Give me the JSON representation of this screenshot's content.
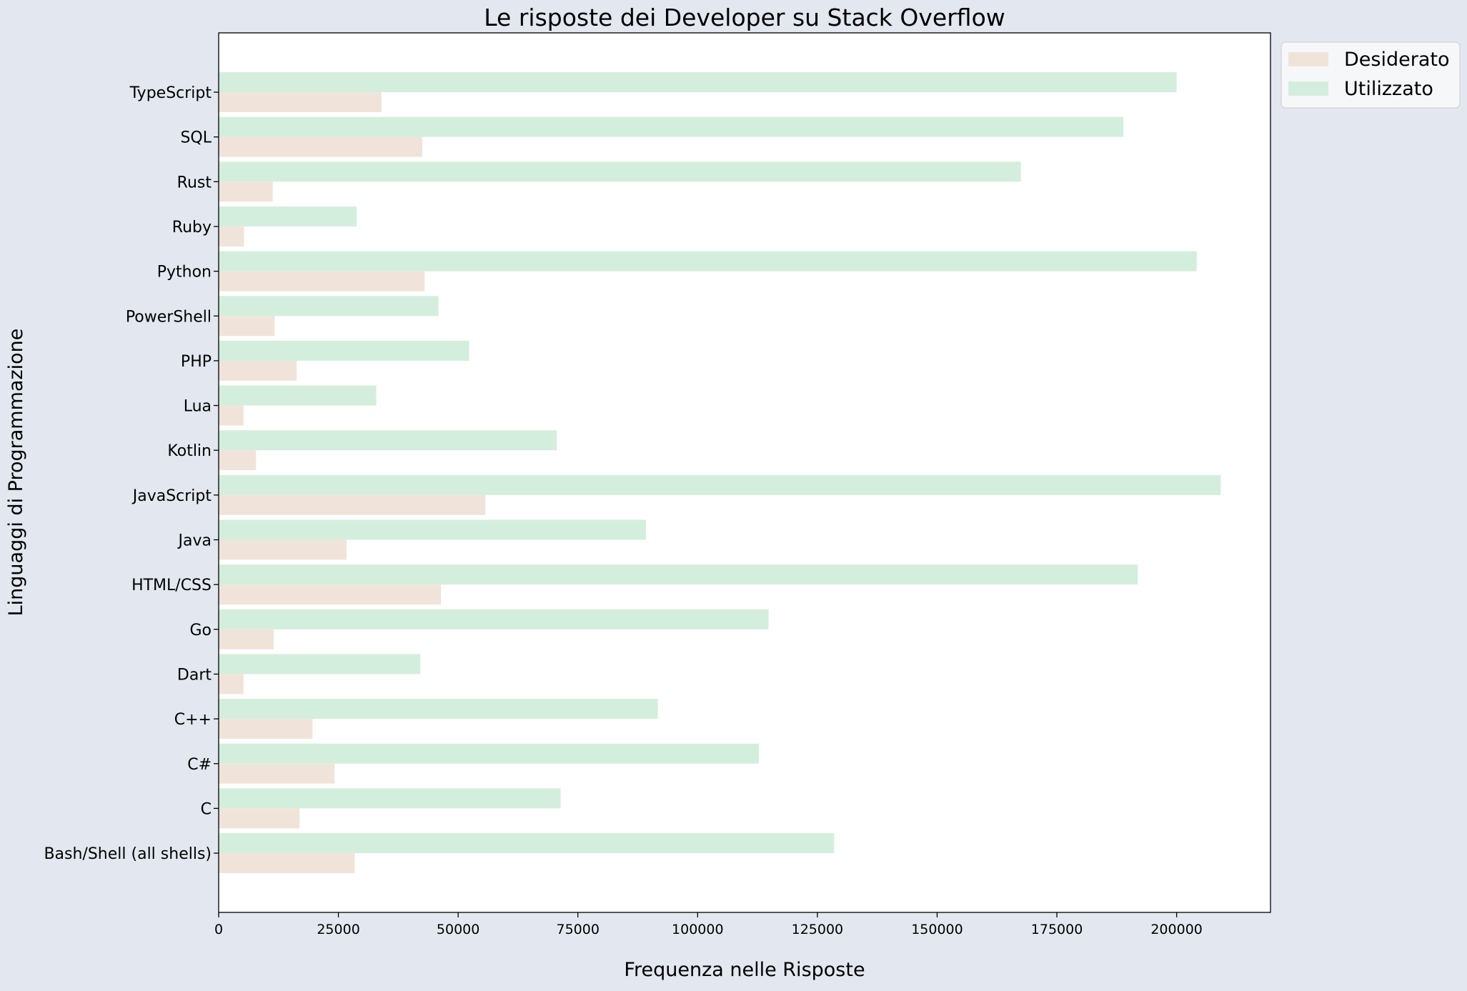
{
  "chart_data": {
    "type": "bar",
    "orientation": "horizontal",
    "title": "Le risposte dei Developer su Stack Overflow",
    "xlabel": "Frequenza nelle Risposte",
    "ylabel": "Linguaggi di Programmazione",
    "xlim": [
      0,
      219600
    ],
    "xticks": [
      0,
      25000,
      50000,
      75000,
      100000,
      125000,
      150000,
      175000,
      200000
    ],
    "xtick_labels": [
      "0",
      "25000",
      "50000",
      "75000",
      "100000",
      "125000",
      "150000",
      "175000",
      "200000"
    ],
    "categories": [
      "TypeScript",
      "SQL",
      "Rust",
      "Ruby",
      "Python",
      "PowerShell",
      "PHP",
      "Lua",
      "Kotlin",
      "JavaScript",
      "Java",
      "HTML/CSS",
      "Go",
      "Dart",
      "C++",
      "C#",
      "C",
      "Bash/Shell (all shells)"
    ],
    "series": [
      {
        "name": "Desiderato",
        "color": "#f0e4da",
        "values": [
          34000,
          42500,
          11300,
          5300,
          43000,
          11700,
          16300,
          5200,
          7800,
          55700,
          26700,
          46400,
          11500,
          5200,
          19600,
          24200,
          16900,
          28400
        ]
      },
      {
        "name": "Utilizzato",
        "color": "#d4eedd",
        "values": [
          200000,
          188900,
          167500,
          28800,
          204200,
          45900,
          52300,
          32900,
          70600,
          209200,
          89200,
          191900,
          114800,
          42100,
          91700,
          112800,
          71400,
          128500
        ]
      }
    ],
    "legend_position": "top-right-outside",
    "grid": false
  }
}
